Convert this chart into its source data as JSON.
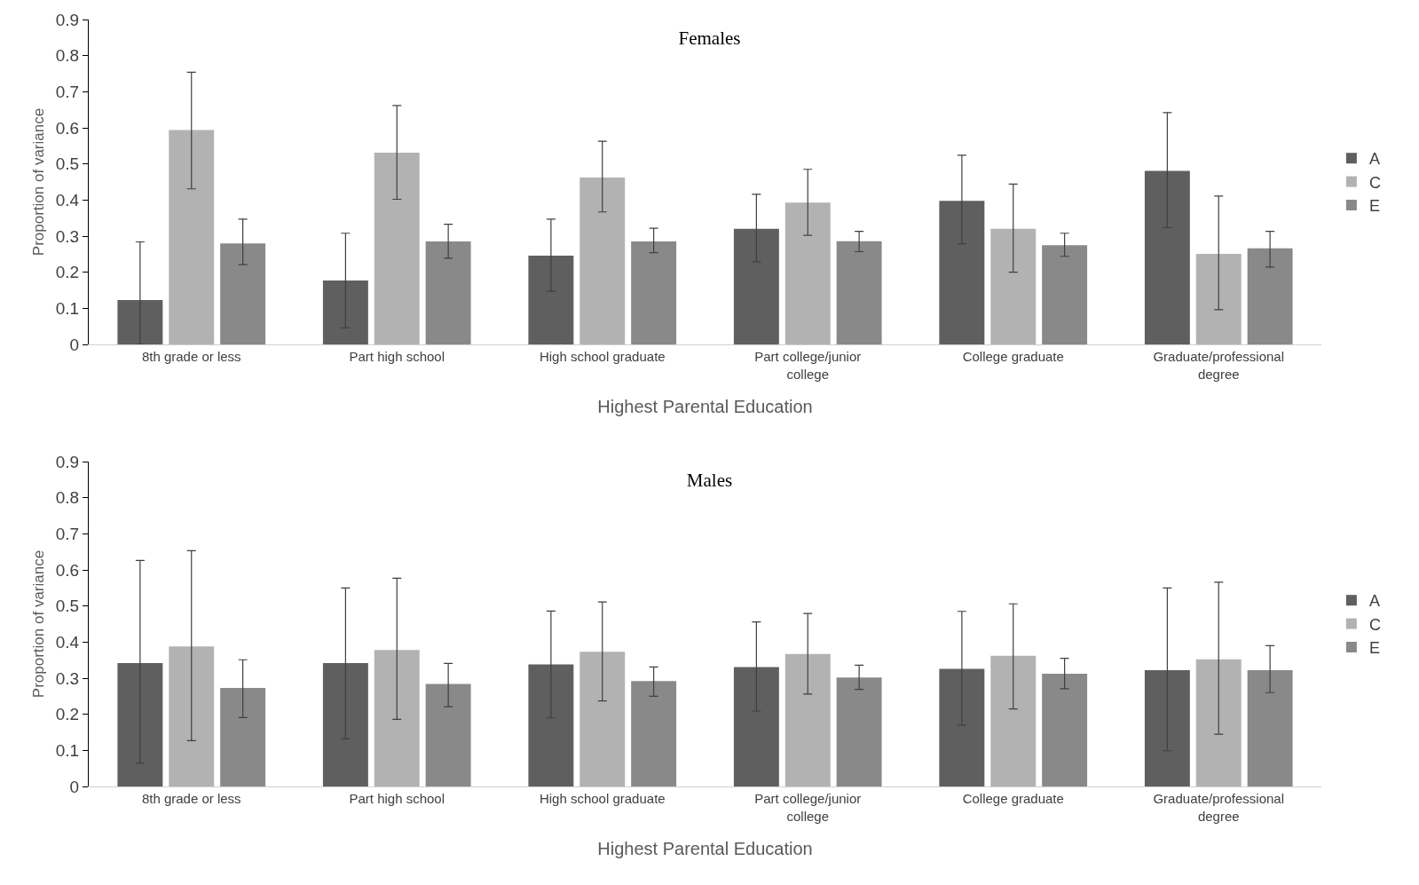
{
  "chart_data": [
    {
      "type": "bar",
      "title": "Females",
      "xlabel": "Highest Parental Education",
      "ylabel": "Proportion of variance",
      "categories": [
        "8th grade or less",
        "Part high school",
        "High school graduate",
        "Part college/junior college",
        "College graduate",
        "Graduate/professional degree"
      ],
      "series": [
        {
          "name": "A",
          "color": "#5f5f5f",
          "values": [
            0.123,
            0.177,
            0.246,
            0.32,
            0.398,
            0.481
          ],
          "errors": [
            [
              0,
              0.284
            ],
            [
              0.046,
              0.308
            ],
            [
              0.147,
              0.347
            ],
            [
              0.229,
              0.416
            ],
            [
              0.279,
              0.524
            ],
            [
              0.324,
              0.642
            ]
          ]
        },
        {
          "name": "C",
          "color": "#b2b2b2",
          "values": [
            0.594,
            0.531,
            0.462,
            0.393,
            0.32,
            0.251
          ],
          "errors": [
            [
              0.431,
              0.754
            ],
            [
              0.402,
              0.662
            ],
            [
              0.367,
              0.563
            ],
            [
              0.302,
              0.485
            ],
            [
              0.2,
              0.444
            ],
            [
              0.096,
              0.411
            ]
          ]
        },
        {
          "name": "E",
          "color": "#898989",
          "values": [
            0.28,
            0.285,
            0.285,
            0.286,
            0.275,
            0.266
          ],
          "errors": [
            [
              0.221,
              0.347
            ],
            [
              0.239,
              0.333
            ],
            [
              0.254,
              0.322
            ],
            [
              0.257,
              0.313
            ],
            [
              0.244,
              0.308
            ],
            [
              0.214,
              0.313
            ]
          ]
        }
      ],
      "ylim": [
        0,
        0.9
      ],
      "yticks": [
        0,
        0.1,
        0.2,
        0.3,
        0.4,
        0.5,
        0.6,
        0.7,
        0.8,
        0.9
      ],
      "grid": false,
      "legend": "right"
    },
    {
      "type": "bar",
      "title": "Males",
      "xlabel": "Highest Parental Education",
      "ylabel": "Proportion of variance",
      "categories": [
        "8th grade or less",
        "Part high school",
        "High school graduate",
        "Part college/junior college",
        "College graduate",
        "Graduate/professional degree"
      ],
      "series": [
        {
          "name": "A",
          "color": "#5f5f5f",
          "values": [
            0.342,
            0.342,
            0.338,
            0.331,
            0.326,
            0.322
          ],
          "errors": [
            [
              0.065,
              0.626
            ],
            [
              0.132,
              0.55
            ],
            [
              0.19,
              0.486
            ],
            [
              0.209,
              0.456
            ],
            [
              0.17,
              0.485
            ],
            [
              0.099,
              0.55
            ]
          ]
        },
        {
          "name": "C",
          "color": "#b2b2b2",
          "values": [
            0.388,
            0.378,
            0.373,
            0.367,
            0.362,
            0.352
          ],
          "errors": [
            [
              0.127,
              0.653
            ],
            [
              0.186,
              0.577
            ],
            [
              0.237,
              0.511
            ],
            [
              0.256,
              0.479
            ],
            [
              0.215,
              0.506
            ],
            [
              0.145,
              0.566
            ]
          ]
        },
        {
          "name": "E",
          "color": "#898989",
          "values": [
            0.273,
            0.284,
            0.292,
            0.302,
            0.312,
            0.322
          ],
          "errors": [
            [
              0.191,
              0.351
            ],
            [
              0.221,
              0.341
            ],
            [
              0.25,
              0.331
            ],
            [
              0.269,
              0.336
            ],
            [
              0.271,
              0.355
            ],
            [
              0.26,
              0.39
            ]
          ]
        }
      ],
      "ylim": [
        0,
        0.9
      ],
      "yticks": [
        0,
        0.1,
        0.2,
        0.3,
        0.4,
        0.5,
        0.6,
        0.7,
        0.8,
        0.9
      ],
      "grid": false,
      "legend": "right"
    }
  ]
}
